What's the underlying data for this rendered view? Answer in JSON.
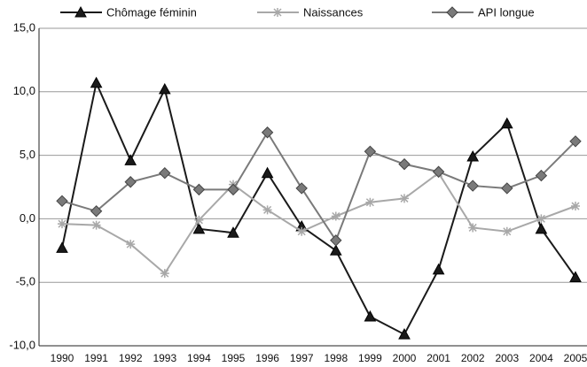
{
  "chart_data": {
    "type": "line",
    "categories": [
      "1990",
      "1991",
      "1992",
      "1993",
      "1994",
      "1995",
      "1996",
      "1997",
      "1998",
      "1999",
      "2000",
      "2001",
      "2002",
      "2003",
      "2004",
      "2005"
    ],
    "series": [
      {
        "name": "Chômage féminin",
        "color": "#1a1a1a",
        "marker": "triangle",
        "values": [
          -2.3,
          10.7,
          4.6,
          10.2,
          -0.8,
          -1.1,
          3.6,
          -0.6,
          -2.5,
          -7.7,
          -9.1,
          -4.0,
          4.9,
          7.5,
          -0.8,
          -4.6
        ]
      },
      {
        "name": "Naissances",
        "color": "#a8a8a8",
        "marker": "star",
        "values": [
          -0.4,
          -0.5,
          -2.0,
          -4.3,
          -0.1,
          2.7,
          0.7,
          -1.0,
          0.2,
          1.3,
          1.6,
          3.6,
          -0.7,
          -1.0,
          0.0,
          1.0
        ]
      },
      {
        "name": "API longue",
        "color": "#7a7a7a",
        "marker": "diamond",
        "values": [
          1.4,
          0.6,
          2.9,
          3.6,
          2.3,
          2.3,
          6.8,
          2.4,
          -1.7,
          5.3,
          4.3,
          3.7,
          2.6,
          2.4,
          3.4,
          6.1
        ]
      }
    ],
    "ylim": [
      -10,
      15
    ],
    "yticks": [
      {
        "value": -10,
        "label": "-10,0"
      },
      {
        "value": -5,
        "label": "-5,0"
      },
      {
        "value": 0,
        "label": "0,0"
      },
      {
        "value": 5,
        "label": "5,0"
      },
      {
        "value": 10,
        "label": "10,0"
      },
      {
        "value": 15,
        "label": "15,0"
      }
    ],
    "grid": true,
    "legend": "top"
  }
}
